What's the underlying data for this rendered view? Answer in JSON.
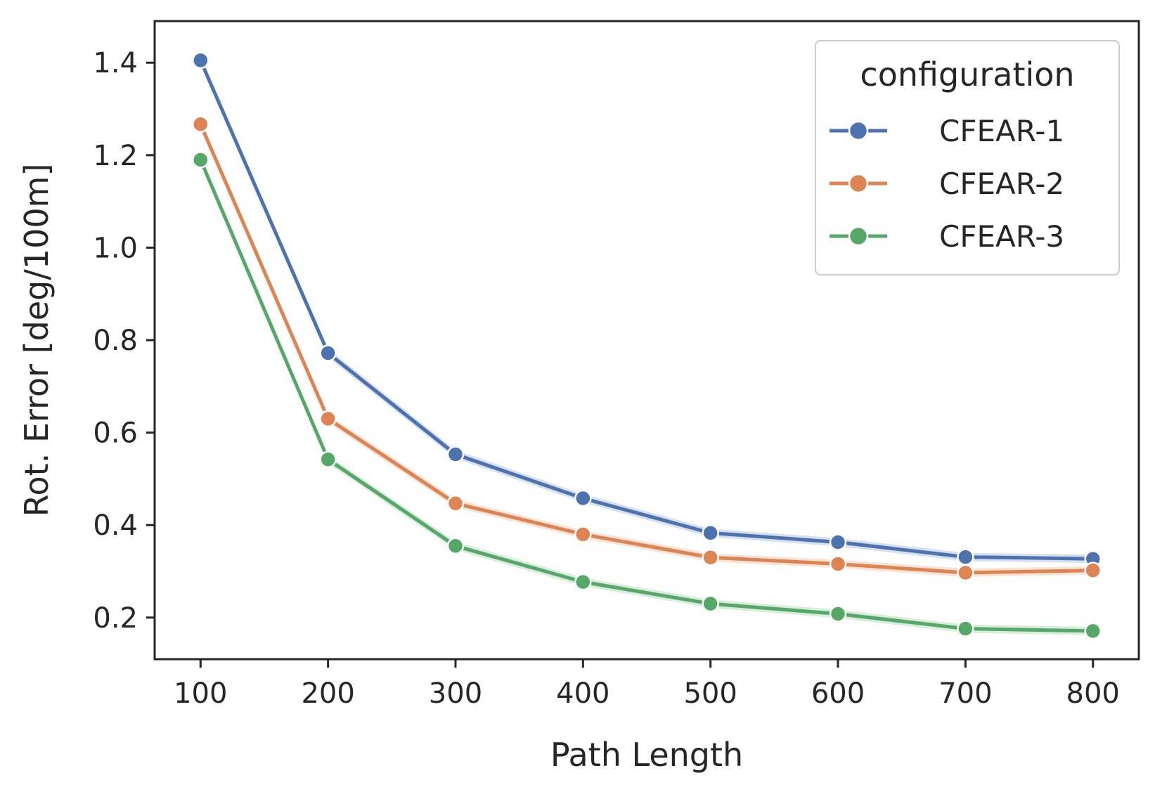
{
  "chart_data": {
    "type": "line",
    "title": "",
    "xlabel": "Path Length",
    "ylabel": "Rot. Error [deg/100m]",
    "x": [
      100,
      200,
      300,
      400,
      500,
      600,
      700,
      800
    ],
    "xticks": [
      100,
      200,
      300,
      400,
      500,
      600,
      700,
      800
    ],
    "yticks": [
      0.2,
      0.4,
      0.6,
      0.8,
      1.0,
      1.2,
      1.4
    ],
    "ytick_labels": [
      "0.2",
      "0.4",
      "0.6",
      "0.8",
      "1.0",
      "1.2",
      "1.4"
    ],
    "xlim": [
      64,
      836
    ],
    "ylim": [
      0.11,
      1.49
    ],
    "grid": false,
    "legend": {
      "title": "configuration",
      "position": "top-right"
    },
    "series": [
      {
        "name": "CFEAR-1",
        "color": "#4c72b0",
        "values": [
          1.405,
          0.772,
          0.553,
          0.458,
          0.383,
          0.363,
          0.331,
          0.327
        ]
      },
      {
        "name": "CFEAR-2",
        "color": "#dd8452",
        "values": [
          1.267,
          0.63,
          0.447,
          0.38,
          0.33,
          0.316,
          0.297,
          0.302
        ]
      },
      {
        "name": "CFEAR-3",
        "color": "#55a868",
        "values": [
          1.19,
          0.542,
          0.355,
          0.277,
          0.23,
          0.208,
          0.176,
          0.171
        ]
      }
    ]
  }
}
